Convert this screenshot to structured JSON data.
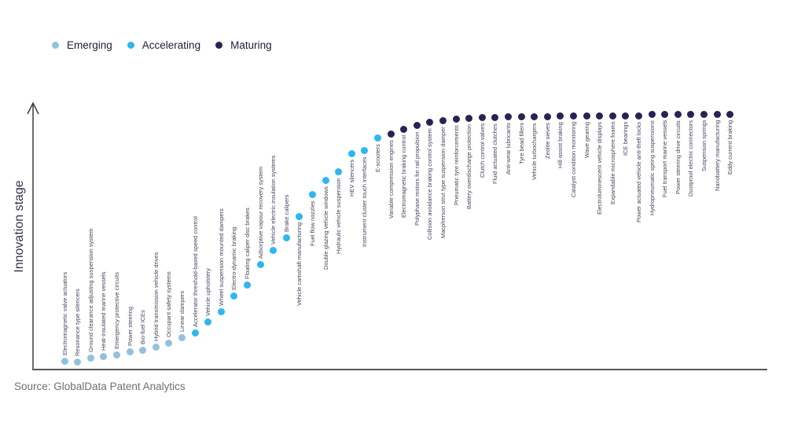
{
  "legend": {
    "items": [
      {
        "label": "Emerging",
        "color": "#92C1DE"
      },
      {
        "label": "Accelerating",
        "color": "#2FB5F1"
      },
      {
        "label": "Maturing",
        "color": "#2B2153"
      }
    ]
  },
  "y_axis_label": "Innovation stage",
  "source_note": "Source: GlobalData Patent Analytics",
  "chart_data": {
    "type": "scatter",
    "title": "",
    "xlabel": "",
    "ylabel": "Innovation stage",
    "ylim": [
      0,
      100
    ],
    "grid": false,
    "legend_position": "top-left",
    "x_ordering": "technologies ranked left-to-right by ascending innovation stage",
    "categories": [
      "Emerging",
      "Accelerating",
      "Maturing"
    ],
    "points": [
      {
        "label": "Electromagnetic valve actuators",
        "category": "Emerging",
        "stage_value": 3.2
      },
      {
        "label": "Resonance type silencers",
        "category": "Emerging",
        "stage_value": 2.9
      },
      {
        "label": "Ground clearance adjusting suspension system",
        "category": "Emerging",
        "stage_value": 4.4
      },
      {
        "label": "Heat-insulated marine vessels",
        "category": "Emerging",
        "stage_value": 5.0
      },
      {
        "label": "Emergency protective circuits",
        "category": "Emerging",
        "stage_value": 5.3
      },
      {
        "label": "Power steering",
        "category": "Emerging",
        "stage_value": 6.5
      },
      {
        "label": "Bio-fuel ICEs",
        "category": "Emerging",
        "stage_value": 7.1
      },
      {
        "label": "Hybrid transmission vehicle drives",
        "category": "Emerging",
        "stage_value": 8.5
      },
      {
        "label": "Occupant safety systems",
        "category": "Emerging",
        "stage_value": 10.0
      },
      {
        "label": "Linear dampers",
        "category": "Emerging",
        "stage_value": 11.8
      },
      {
        "label": "Accelerator threshold-based speed control",
        "category": "Accelerating",
        "stage_value": 13.8
      },
      {
        "label": "Vehicle upholstery",
        "category": "Accelerating",
        "stage_value": 17.9
      },
      {
        "label": "Wheel suspension mounted dampers",
        "category": "Accelerating",
        "stage_value": 21.5
      },
      {
        "label": "Electro-dynamic braking",
        "category": "Accelerating",
        "stage_value": 27.6
      },
      {
        "label": "Floating caliper disc brakes",
        "category": "Accelerating",
        "stage_value": 31.5
      },
      {
        "label": "Adsorptive vapour recovery system",
        "category": "Accelerating",
        "stage_value": 39.4
      },
      {
        "label": "Vehicle electric insulation systems",
        "category": "Accelerating",
        "stage_value": 44.7
      },
      {
        "label": "Brake calipers",
        "category": "Accelerating",
        "stage_value": 49.4
      },
      {
        "label": "Vehicle camshaft manufacturing",
        "category": "Accelerating",
        "stage_value": 57.1
      },
      {
        "label": "Fuel flow nozzles",
        "category": "Accelerating",
        "stage_value": 65.3
      },
      {
        "label": "Double glazing vehicle windows",
        "category": "Accelerating",
        "stage_value": 70.6
      },
      {
        "label": "Hydraulic vehicle suspension",
        "category": "Accelerating",
        "stage_value": 74.1
      },
      {
        "label": "HEV silencers",
        "category": "Accelerating",
        "stage_value": 80.6
      },
      {
        "label": "Instrument cluster touch interfaces",
        "category": "Accelerating",
        "stage_value": 81.8
      },
      {
        "label": "E-scooters",
        "category": "Accelerating",
        "stage_value": 86.5
      },
      {
        "label": "Variable compression engines",
        "category": "Maturing",
        "stage_value": 88.2
      },
      {
        "label": "Electromagnetic braking control",
        "category": "Maturing",
        "stage_value": 90.0
      },
      {
        "label": "Polyphase motors for rail propulsion",
        "category": "Maturing",
        "stage_value": 91.2
      },
      {
        "label": "Collision avoidance braking control system",
        "category": "Maturing",
        "stage_value": 92.4
      },
      {
        "label": "Macpherson strut type suspension damper",
        "category": "Maturing",
        "stage_value": 93.2
      },
      {
        "label": "Pneumatic tyre reinforcements",
        "category": "Maturing",
        "stage_value": 93.8
      },
      {
        "label": "Battery overdischarge protection",
        "category": "Maturing",
        "stage_value": 94.1
      },
      {
        "label": "Clutch control valves",
        "category": "Maturing",
        "stage_value": 94.4
      },
      {
        "label": "Fluid actuated clutches",
        "category": "Maturing",
        "stage_value": 94.4
      },
      {
        "label": "Anti-wear lubricants",
        "category": "Maturing",
        "stage_value": 94.7
      },
      {
        "label": "Tyre bead fillers",
        "category": "Maturing",
        "stage_value": 94.7
      },
      {
        "label": "Vehicle turbochargers",
        "category": "Maturing",
        "stage_value": 94.7
      },
      {
        "label": "Zeolite sieves",
        "category": "Maturing",
        "stage_value": 94.7
      },
      {
        "label": "Hill-assist braking",
        "category": "Maturing",
        "stage_value": 95.0
      },
      {
        "label": "Catalyst condition monitoring",
        "category": "Maturing",
        "stage_value": 95.0
      },
      {
        "label": "Wave gearing",
        "category": "Maturing",
        "stage_value": 95.0
      },
      {
        "label": "Electroluminescent vehicle displays",
        "category": "Maturing",
        "stage_value": 95.0
      },
      {
        "label": "Expandable microsphere foams",
        "category": "Maturing",
        "stage_value": 95.0
      },
      {
        "label": "ICE bearings",
        "category": "Maturing",
        "stage_value": 95.0
      },
      {
        "label": "Power actuated vehicle anti-theft locks",
        "category": "Maturing",
        "stage_value": 95.0
      },
      {
        "label": "Hydropneumatic spring suspensions",
        "category": "Maturing",
        "stage_value": 95.3
      },
      {
        "label": "Fuel transport marine vessels",
        "category": "Maturing",
        "stage_value": 95.3
      },
      {
        "label": "Power steering drive circuits",
        "category": "Maturing",
        "stage_value": 95.3
      },
      {
        "label": "Dustproof electric connectors",
        "category": "Maturing",
        "stage_value": 95.3
      },
      {
        "label": "Suspension springs",
        "category": "Maturing",
        "stage_value": 95.3
      },
      {
        "label": "Nanobattery manufacturing",
        "category": "Maturing",
        "stage_value": 95.3
      },
      {
        "label": "Eddy current braking",
        "category": "Maturing",
        "stage_value": 95.3
      }
    ]
  }
}
